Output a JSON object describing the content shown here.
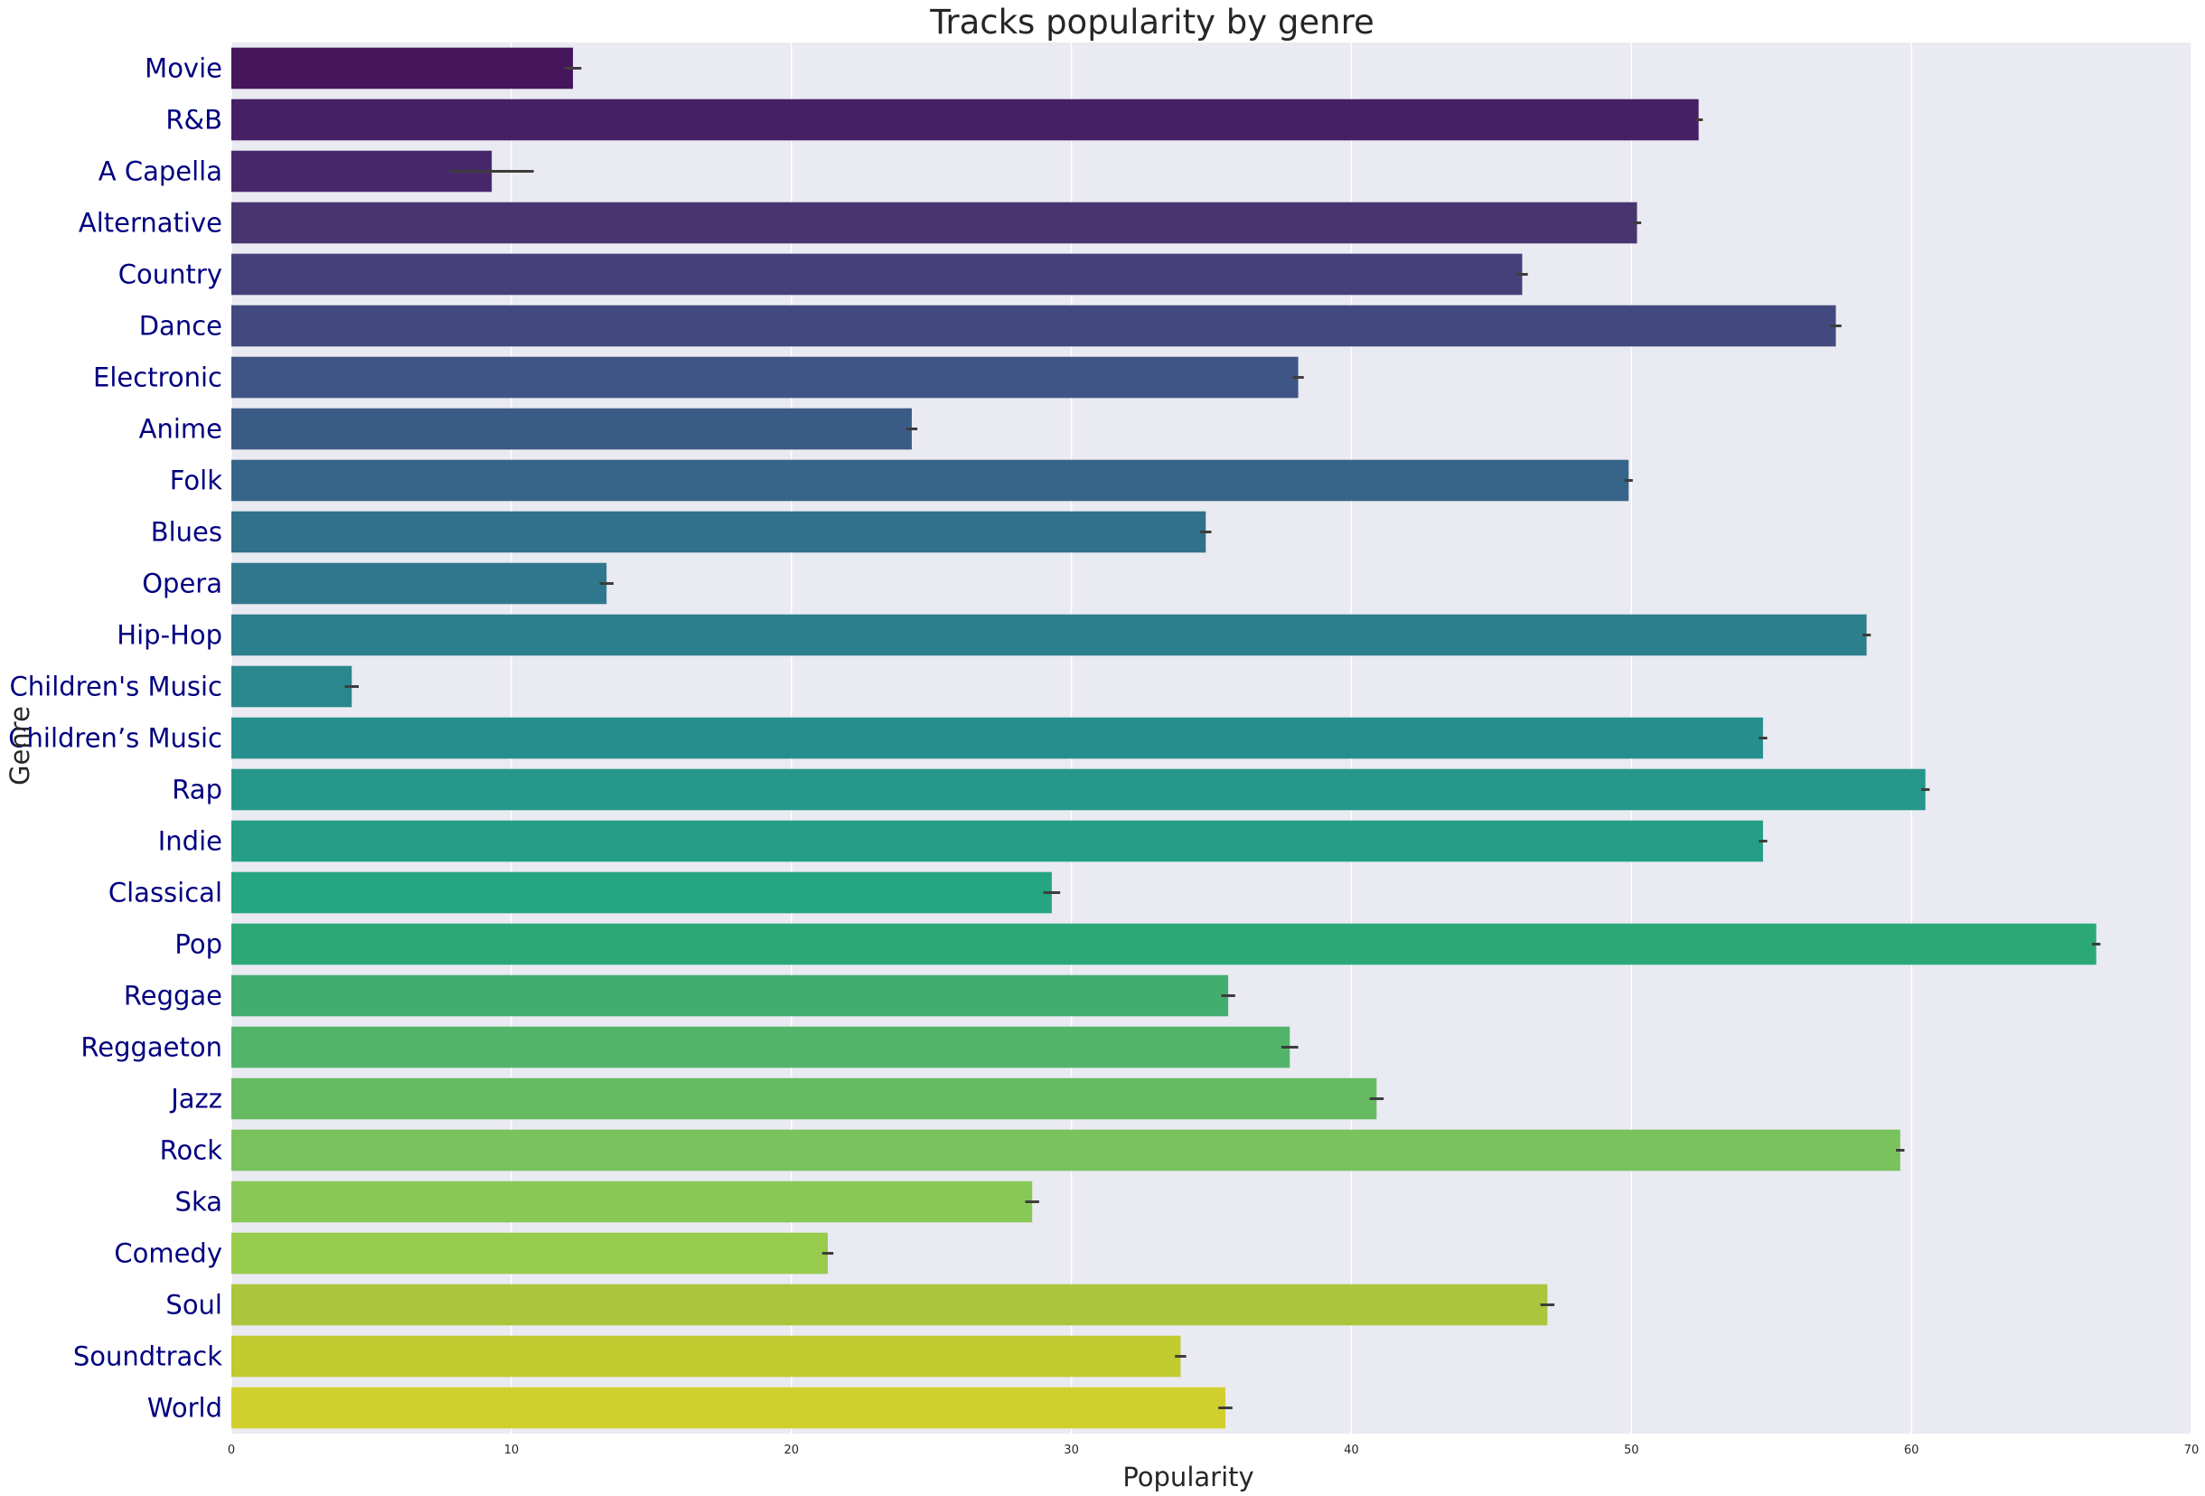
{
  "chart_data": {
    "type": "bar",
    "orientation": "horizontal",
    "title": "Tracks popularity by genre",
    "xlabel": "Popularity",
    "ylabel": "Genre",
    "xlim": [
      0,
      70
    ],
    "x_ticks": [
      "0",
      "10",
      "20",
      "30",
      "40",
      "50",
      "60",
      "70"
    ],
    "grid": true,
    "background": "#EAEAF2",
    "label_color": "#000080",
    "categories": [
      "Movie",
      "R&B",
      "A Capella",
      "Alternative",
      "Country",
      "Dance",
      "Electronic",
      "Anime",
      "Folk",
      "Blues",
      "Opera",
      "Hip-Hop",
      "Children's Music",
      "Children’s Music",
      "Rap",
      "Indie",
      "Classical",
      "Pop",
      "Reggae",
      "Reggaeton",
      "Jazz",
      "Rock",
      "Ska",
      "Comedy",
      "Soul",
      "Soundtrack",
      "World"
    ],
    "values": [
      12.2,
      52.4,
      9.3,
      50.2,
      46.1,
      57.3,
      38.1,
      24.3,
      49.9,
      34.8,
      13.4,
      58.4,
      4.3,
      54.7,
      60.5,
      54.7,
      29.3,
      66.6,
      35.6,
      37.8,
      40.9,
      59.6,
      28.6,
      21.3,
      47.0,
      33.9,
      35.5
    ],
    "error_bars": [
      0.3,
      0.15,
      1.5,
      0.15,
      0.2,
      0.2,
      0.2,
      0.2,
      0.15,
      0.2,
      0.25,
      0.15,
      0.25,
      0.15,
      0.15,
      0.15,
      0.3,
      0.15,
      0.25,
      0.3,
      0.25,
      0.15,
      0.25,
      0.2,
      0.25,
      0.2,
      0.25
    ],
    "colors": [
      "#46165D",
      "#471F64",
      "#48286B",
      "#483570",
      "#45407A",
      "#42497F",
      "#3F5585",
      "#3B5B87",
      "#37658A",
      "#33708C",
      "#30778E",
      "#2C808E",
      "#2A878E",
      "#268F8D",
      "#25978A",
      "#249E86",
      "#25A581",
      "#2CA878",
      "#43AD70",
      "#52B46B",
      "#66BB62",
      "#79C25E",
      "#88C857",
      "#97CB4B",
      "#ABC53D",
      "#C1CA2E",
      "#D1CF2E"
    ]
  }
}
